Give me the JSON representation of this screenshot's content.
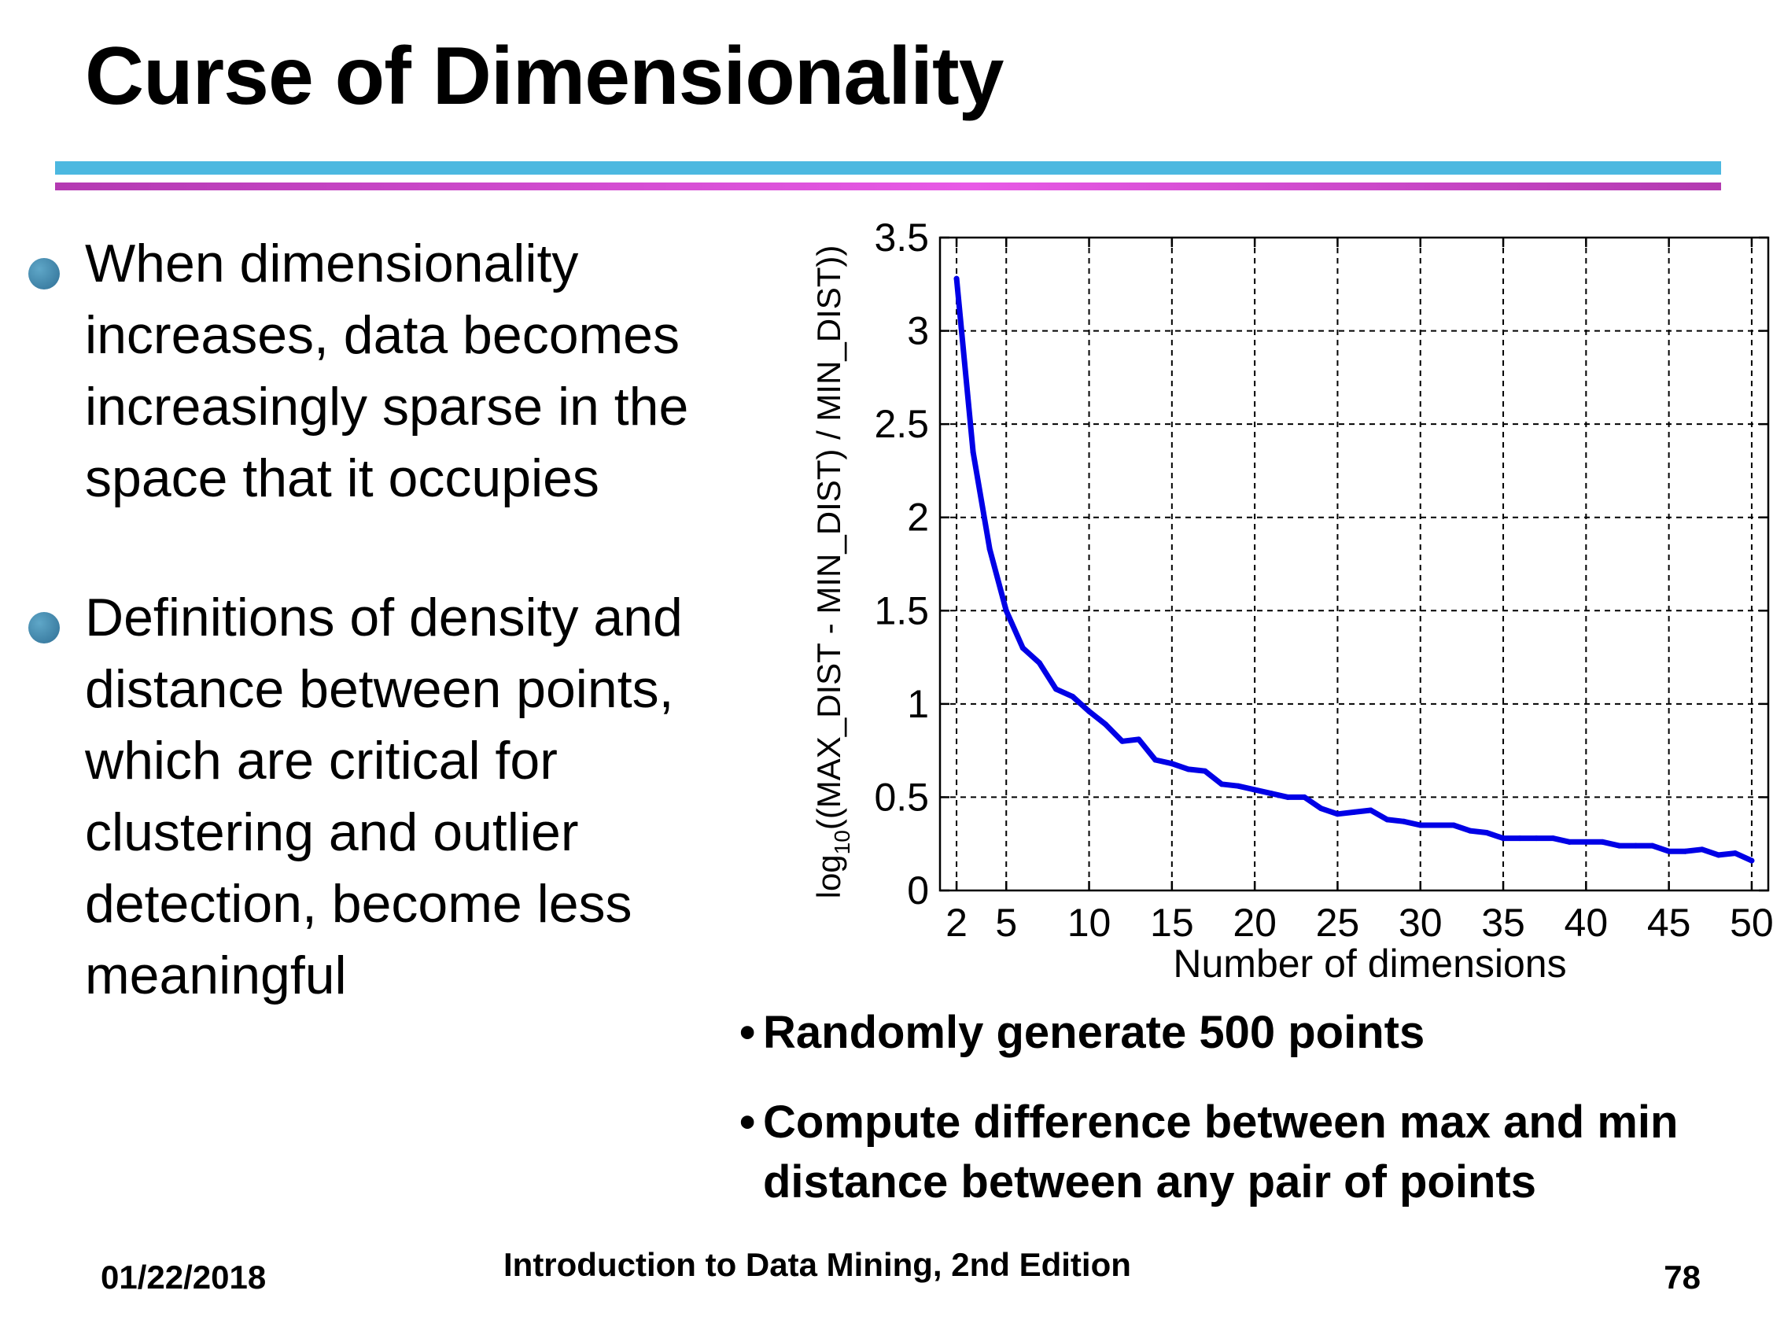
{
  "slide": {
    "title": "Curse of Dimensionality",
    "bullets": [
      "When dimensionality increases, data becomes increasingly sparse in the space that it occupies",
      "Definitions of density and distance between points, which are critical for clustering and outlier detection, become less meaningful"
    ],
    "notes": [
      "Randomly generate 500 points",
      "Compute difference between max and min distance between any pair of points"
    ]
  },
  "footer": {
    "date": "01/22/2018",
    "center": "Introduction to Data Mining, 2nd Edition",
    "page": "78"
  },
  "colors": {
    "rule_top": "#4cb8e0",
    "rule_bottom": "#c145c0",
    "bullet_dot": "#3a7ca5",
    "series": "#0000e6",
    "grid": "#000000"
  },
  "chart_data": {
    "type": "line",
    "title": "",
    "xlabel": "Number of dimensions",
    "ylabel_prefix": "log",
    "ylabel_sub": "10",
    "ylabel_rest": "((MAX_DIST - MIN_DIST) / MIN_DIST))",
    "xlim": [
      1,
      51
    ],
    "ylim": [
      0,
      3.5
    ],
    "xticks": [
      2,
      5,
      10,
      15,
      20,
      25,
      30,
      35,
      40,
      45,
      50
    ],
    "xtick_labels": [
      "2",
      "5",
      "10",
      "15",
      "20",
      "25",
      "30",
      "35",
      "40",
      "45",
      "50"
    ],
    "yticks": [
      0,
      0.5,
      1,
      1.5,
      2,
      2.5,
      3,
      3.5
    ],
    "ytick_labels": [
      "0",
      "0.5",
      "1",
      "1.5",
      "2",
      "2.5",
      "3",
      "3.5"
    ],
    "grid": true,
    "series": [
      {
        "x": [
          2,
          3,
          4,
          5,
          6,
          7,
          8,
          9,
          10,
          11,
          12,
          13,
          14,
          15,
          16,
          17,
          18,
          19,
          20,
          21,
          22,
          23,
          24,
          25,
          26,
          27,
          28,
          29,
          30,
          31,
          32,
          33,
          34,
          35,
          36,
          37,
          38,
          39,
          40,
          41,
          42,
          43,
          44,
          45,
          46,
          47,
          48,
          49,
          50
        ],
        "y": [
          3.28,
          2.35,
          1.83,
          1.5,
          1.3,
          1.22,
          1.08,
          1.04,
          0.96,
          0.89,
          0.8,
          0.81,
          0.7,
          0.68,
          0.65,
          0.64,
          0.57,
          0.56,
          0.54,
          0.52,
          0.5,
          0.5,
          0.44,
          0.41,
          0.42,
          0.43,
          0.38,
          0.37,
          0.35,
          0.35,
          0.35,
          0.32,
          0.31,
          0.28,
          0.28,
          0.28,
          0.28,
          0.26,
          0.26,
          0.26,
          0.24,
          0.24,
          0.24,
          0.21,
          0.21,
          0.22,
          0.19,
          0.2,
          0.16
        ]
      }
    ]
  }
}
